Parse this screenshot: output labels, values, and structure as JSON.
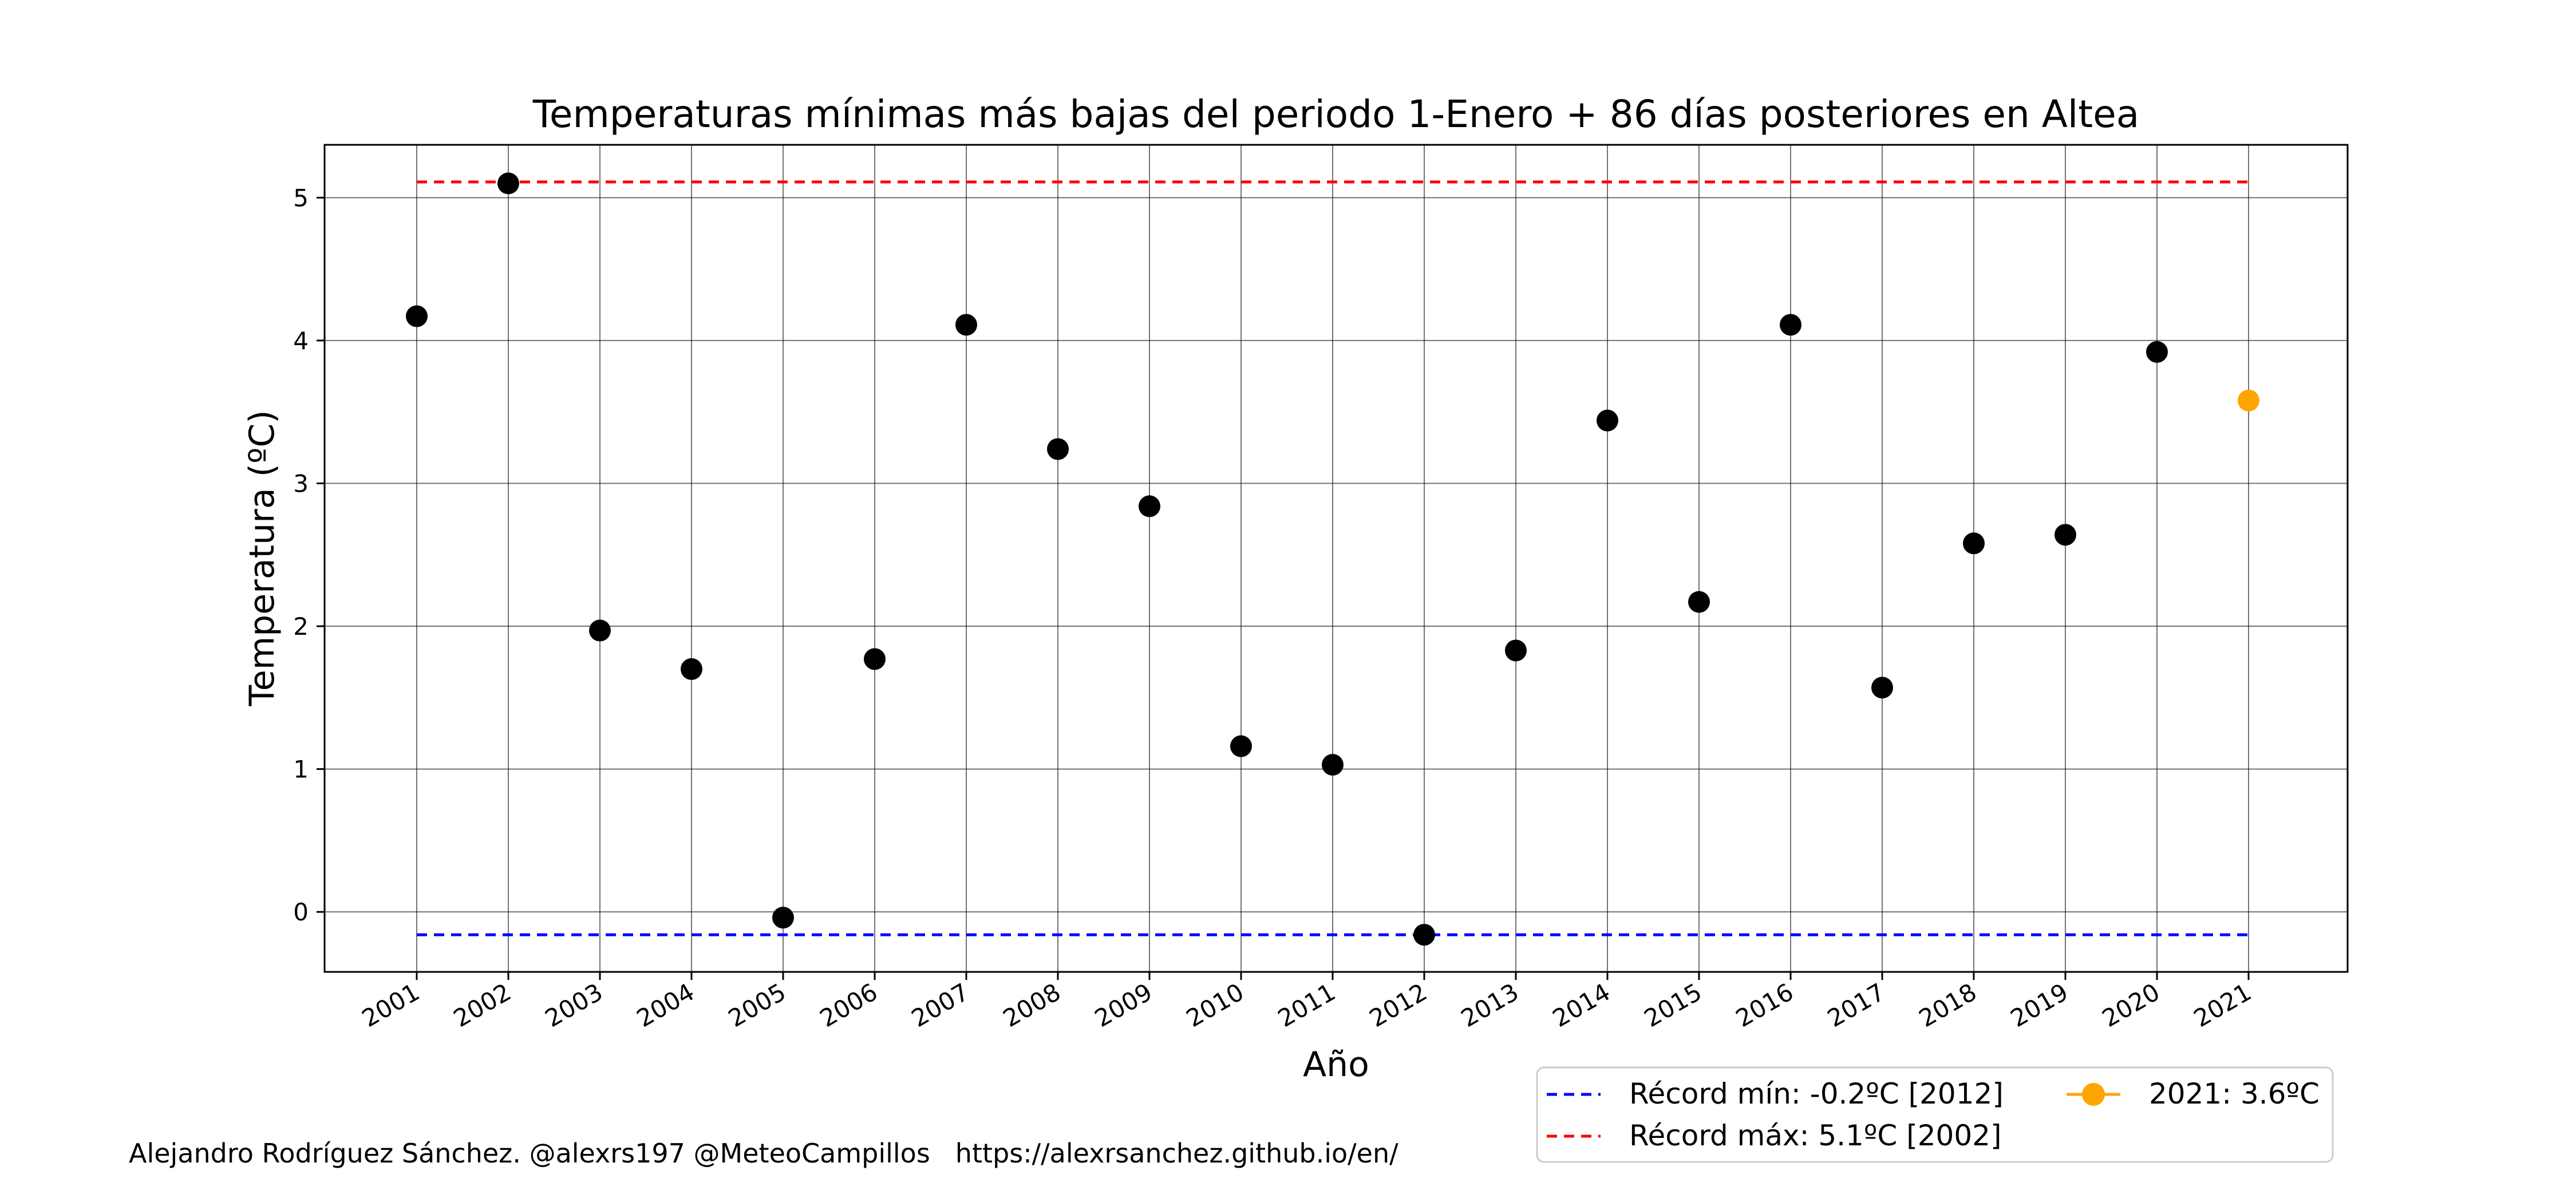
{
  "chart_data": {
    "type": "scatter",
    "title": "Temperaturas mínimas más bajas del periodo 1-Enero + 86 días posteriores en Altea",
    "xlabel": "Año",
    "ylabel": "Temperatura (ºC)",
    "categories": [
      "2001",
      "2002",
      "2003",
      "2004",
      "2005",
      "2006",
      "2007",
      "2008",
      "2009",
      "2010",
      "2011",
      "2012",
      "2013",
      "2014",
      "2015",
      "2016",
      "2017",
      "2018",
      "2019",
      "2020",
      "2021"
    ],
    "series": [
      {
        "color": "#000000",
        "x": [
          "2001",
          "2002",
          "2003",
          "2004",
          "2005",
          "2006",
          "2007",
          "2008",
          "2009",
          "2010",
          "2011",
          "2012",
          "2013",
          "2014",
          "2015",
          "2016",
          "2017",
          "2018",
          "2019",
          "2020"
        ],
        "values": [
          4.17,
          5.1,
          1.97,
          1.7,
          -0.04,
          1.77,
          4.11,
          3.24,
          2.84,
          1.16,
          1.03,
          -0.16,
          1.83,
          3.44,
          2.17,
          4.11,
          1.57,
          2.58,
          2.64,
          3.92
        ]
      },
      {
        "name": "2021: 3.6ºC",
        "color": "#FFA500",
        "x": [
          "2021"
        ],
        "values": [
          3.58
        ]
      }
    ],
    "reference_lines": [
      {
        "name": "Récord mín: -0.2ºC [2012]",
        "value": -0.16,
        "color": "#0000FF",
        "style": "dashed"
      },
      {
        "name": "Récord máx: 5.1ºC [2002]",
        "value": 5.11,
        "color": "#FF0000",
        "style": "dashed"
      }
    ],
    "yticks": [
      0,
      1,
      2,
      3,
      4,
      5
    ],
    "ylim": [
      -0.42,
      5.37
    ],
    "grid": true,
    "legend_position": "bottom-right, below axes"
  },
  "credit": {
    "author": "Alejandro Rodríguez Sánchez. @alexrs197 @MeteoCampillos",
    "url": "https://alexrsanchez.github.io/en/"
  }
}
